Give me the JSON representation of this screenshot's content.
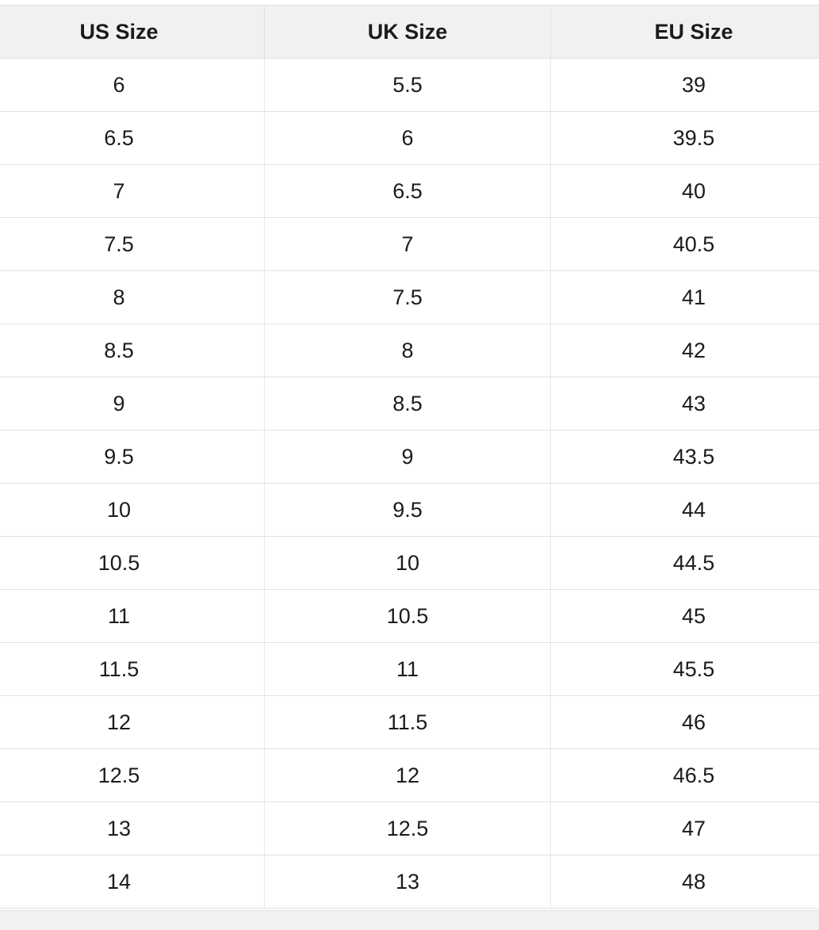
{
  "chart_data": {
    "type": "table",
    "columns": [
      "US Size",
      "UK Size",
      "EU Size"
    ],
    "rows": [
      [
        "6",
        "5.5",
        "39"
      ],
      [
        "6.5",
        "6",
        "39.5"
      ],
      [
        "7",
        "6.5",
        "40"
      ],
      [
        "7.5",
        "7",
        "40.5"
      ],
      [
        "8",
        "7.5",
        "41"
      ],
      [
        "8.5",
        "8",
        "42"
      ],
      [
        "9",
        "8.5",
        "43"
      ],
      [
        "9.5",
        "9",
        "43.5"
      ],
      [
        "10",
        "9.5",
        "44"
      ],
      [
        "10.5",
        "10",
        "44.5"
      ],
      [
        "11",
        "10.5",
        "45"
      ],
      [
        "11.5",
        "11",
        "45.5"
      ],
      [
        "12",
        "11.5",
        "46"
      ],
      [
        "12.5",
        "12",
        "46.5"
      ],
      [
        "13",
        "12.5",
        "47"
      ],
      [
        "14",
        "13",
        "48"
      ]
    ]
  },
  "colors": {
    "header_bg": "#f1f1f1",
    "row_bg": "#ffffff",
    "border": "#e1e1e1",
    "divider": "#e8e8e8",
    "text": "#1b1b1b"
  }
}
